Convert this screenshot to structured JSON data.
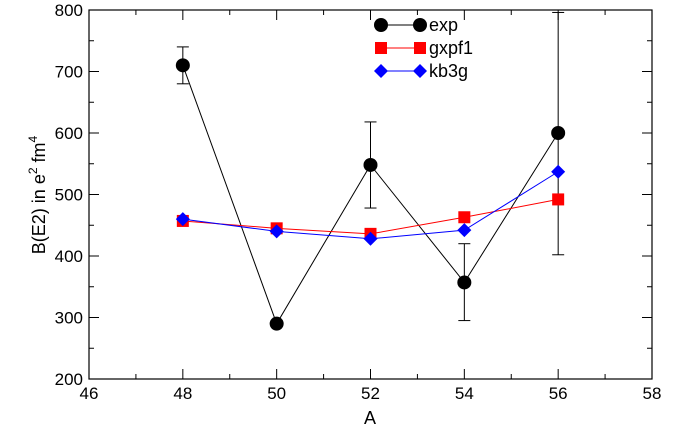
{
  "chart_data": {
    "type": "line",
    "xlabel": "A",
    "ylabel_parts": [
      "B(E2) in e",
      "2",
      " fm",
      "4"
    ],
    "xlim": [
      46,
      58
    ],
    "ylim": [
      200,
      800
    ],
    "xticks": [
      46,
      48,
      50,
      52,
      54,
      56,
      58
    ],
    "yticks": [
      200,
      300,
      400,
      500,
      600,
      700,
      800
    ],
    "grid": false,
    "legend_position": "top-right",
    "series": [
      {
        "name": "exp",
        "color": "#000000",
        "marker": "circle",
        "points": [
          {
            "x": 48,
            "y": 710,
            "err_low": 680,
            "err_high": 740
          },
          {
            "x": 50,
            "y": 290
          },
          {
            "x": 52,
            "y": 548,
            "err_low": 478,
            "err_high": 618
          },
          {
            "x": 54,
            "y": 357,
            "err_low": 295,
            "err_high": 420
          },
          {
            "x": 56,
            "y": 600,
            "err_low": 402,
            "err_high": 796
          }
        ]
      },
      {
        "name": "gxpf1",
        "color": "#ff0000",
        "marker": "square",
        "points": [
          {
            "x": 48,
            "y": 457
          },
          {
            "x": 50,
            "y": 445
          },
          {
            "x": 52,
            "y": 436
          },
          {
            "x": 54,
            "y": 463
          },
          {
            "x": 56,
            "y": 492
          }
        ]
      },
      {
        "name": "kb3g",
        "color": "#0000ff",
        "marker": "diamond",
        "points": [
          {
            "x": 48,
            "y": 460
          },
          {
            "x": 50,
            "y": 440
          },
          {
            "x": 52,
            "y": 428
          },
          {
            "x": 54,
            "y": 442
          },
          {
            "x": 56,
            "y": 537
          }
        ]
      }
    ]
  }
}
